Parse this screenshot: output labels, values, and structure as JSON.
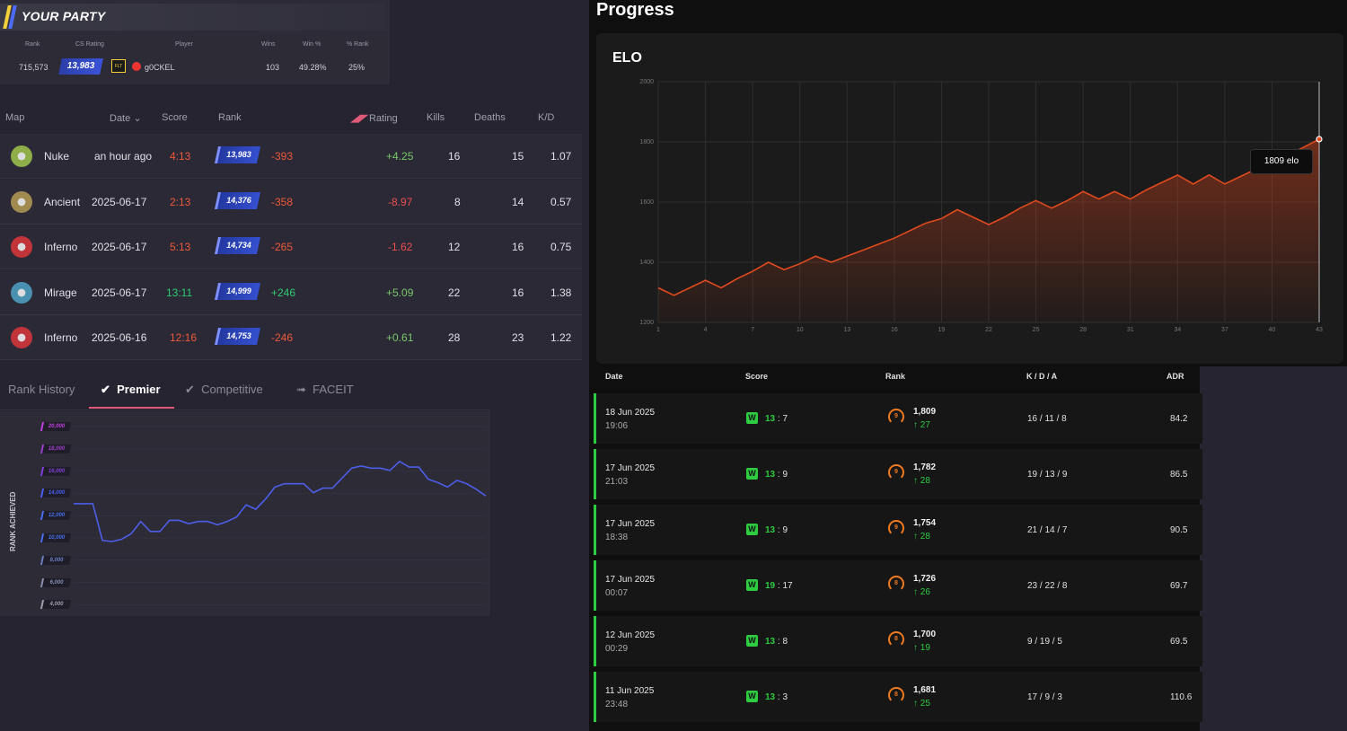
{
  "party": {
    "title": "YOUR PARTY",
    "headers": [
      "Rank",
      "CS Rating",
      "Player",
      "Wins",
      "Win %",
      "% Rank"
    ],
    "row": {
      "rank": "715,573",
      "cs_rating": "13,983",
      "team": "FLT",
      "player": "g0CKEL",
      "wins": "103",
      "win_pct": "49.28%",
      "pct_rank": "25%"
    }
  },
  "match_table": {
    "headers": {
      "map": "Map",
      "date": "Date",
      "score": "Score",
      "rank": "Rank",
      "rating": "Rating",
      "kills": "Kills",
      "deaths": "Deaths",
      "kd": "K/D"
    },
    "rows": [
      {
        "map": "Nuke",
        "date": "an hour ago",
        "score": "4:13",
        "rank": "13,983",
        "rank_delta": "-393",
        "rating": "+4.25",
        "kills": "16",
        "deaths": "15",
        "kd": "1.07",
        "map_color": "#8fae4a"
      },
      {
        "map": "Ancient",
        "date": "2025-06-17",
        "score": "2:13",
        "rank": "14,376",
        "rank_delta": "-358",
        "rating": "-8.97",
        "kills": "8",
        "deaths": "14",
        "kd": "0.57",
        "map_color": "#a08a50"
      },
      {
        "map": "Inferno",
        "date": "2025-06-17",
        "score": "5:13",
        "rank": "14,734",
        "rank_delta": "-265",
        "rating": "-1.62",
        "kills": "12",
        "deaths": "16",
        "kd": "0.75",
        "map_color": "#c0343a"
      },
      {
        "map": "Mirage",
        "date": "2025-06-17",
        "score": "13:11",
        "rank": "14,999",
        "rank_delta": "+246",
        "rating": "+5.09",
        "kills": "22",
        "deaths": "16",
        "kd": "1.38",
        "map_color": "#4a90b0"
      },
      {
        "map": "Inferno",
        "date": "2025-06-16",
        "score": "12:16",
        "rank": "14,753",
        "rank_delta": "-246",
        "rating": "+0.61",
        "kills": "28",
        "deaths": "23",
        "kd": "1.22",
        "map_color": "#c0343a"
      }
    ]
  },
  "rank_history": {
    "tabs": [
      "Rank History",
      "Premier",
      "Competitive",
      "FACEIT"
    ],
    "active_tab": "Premier",
    "ylabel": "RANK ACHIEVED",
    "yticks": [
      "20,000",
      "18,000",
      "16,000",
      "14,000",
      "12,000",
      "10,000",
      "8,000",
      "6,000",
      "4,000"
    ],
    "tick_colors": [
      "#c040e0",
      "#a040d0",
      "#8040d8",
      "#4a60f0",
      "#4a70f0",
      "#4a70f0",
      "#6a80c0",
      "#8a90b0",
      "#a0a0b0"
    ]
  },
  "chart_data": [
    {
      "type": "line",
      "title": "",
      "ylabel": "RANK ACHIEVED",
      "ylim": [
        4000,
        20000
      ],
      "series": [
        {
          "values": [
            13300,
            13300,
            13300,
            10000,
            9900,
            10100,
            10600,
            11700,
            10800,
            10800,
            11800,
            11800,
            11500,
            11700,
            11700,
            11400,
            11700,
            12100,
            13200,
            12800,
            13700,
            14800,
            15100,
            15100,
            15100,
            14300,
            14700,
            14700,
            15600,
            16500,
            16700,
            16500,
            16500,
            16300,
            17100,
            16600,
            16600,
            15500,
            15200,
            14800,
            15400,
            15100,
            14600,
            14000
          ]
        }
      ]
    },
    {
      "type": "area",
      "title": "ELO",
      "xlim": [
        1,
        43
      ],
      "ylim": [
        1200,
        2000
      ],
      "xticks": [
        1,
        4,
        7,
        10,
        13,
        16,
        19,
        22,
        25,
        28,
        31,
        34,
        37,
        40,
        43
      ],
      "yticks": [
        1200,
        1400,
        1600,
        1800,
        2000
      ],
      "series": [
        {
          "values": [
            1315,
            1290,
            1315,
            1340,
            1315,
            1345,
            1370,
            1400,
            1375,
            1395,
            1420,
            1400,
            1420,
            1440,
            1460,
            1480,
            1505,
            1530,
            1545,
            1575,
            1550,
            1525,
            1550,
            1580,
            1605,
            1580,
            1605,
            1635,
            1610,
            1635,
            1610,
            1640,
            1665,
            1690,
            1660,
            1690,
            1660,
            1685,
            1710,
            1735,
            1755,
            1782,
            1809
          ]
        }
      ],
      "tooltip": "1809 elo"
    }
  ],
  "progress": {
    "title": "Progress",
    "elo_title": "ELO",
    "table_headers": {
      "date": "Date",
      "score": "Score",
      "rank": "Rank",
      "kda": "K / D / A",
      "adr": "ADR"
    },
    "rows": [
      {
        "date": "18 Jun 2025",
        "time": "19:06",
        "result": "W",
        "score_w": "13",
        "score_l": "7",
        "rank_level": "9",
        "rank": "1,809",
        "delta": "27",
        "kda": "16 / 11 / 8",
        "adr": "84.2"
      },
      {
        "date": "17 Jun 2025",
        "time": "21:03",
        "result": "W",
        "score_w": "13",
        "score_l": "9",
        "rank_level": "9",
        "rank": "1,782",
        "delta": "28",
        "kda": "19 / 13 / 9",
        "adr": "86.5"
      },
      {
        "date": "17 Jun 2025",
        "time": "18:38",
        "result": "W",
        "score_w": "13",
        "score_l": "9",
        "rank_level": "9",
        "rank": "1,754",
        "delta": "28",
        "kda": "21 / 14 / 7",
        "adr": "90.5"
      },
      {
        "date": "17 Jun 2025",
        "time": "00:07",
        "result": "W",
        "score_w": "19",
        "score_l": "17",
        "rank_level": "8",
        "rank": "1,726",
        "delta": "26",
        "kda": "23 / 22 / 8",
        "adr": "69.7"
      },
      {
        "date": "12 Jun 2025",
        "time": "00:29",
        "result": "W",
        "score_w": "13",
        "score_l": "8",
        "rank_level": "8",
        "rank": "1,700",
        "delta": "19",
        "kda": "9 / 19 / 5",
        "adr": "69.5"
      },
      {
        "date": "11 Jun 2025",
        "time": "23:48",
        "result": "W",
        "score_w": "13",
        "score_l": "3",
        "rank_level": "8",
        "rank": "1,681",
        "delta": "25",
        "kda": "17 / 9 / 3",
        "adr": "110.6"
      }
    ]
  }
}
